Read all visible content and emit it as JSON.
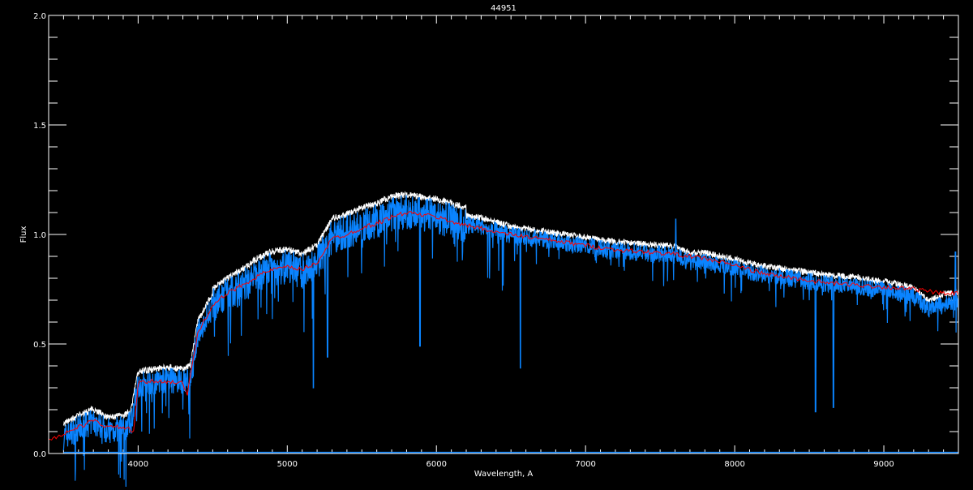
{
  "chart_data": {
    "type": "line",
    "title": "44951",
    "xlabel": "Wavelength, A",
    "ylabel": "Flux",
    "xlim": [
      3400,
      9500
    ],
    "ylim": [
      0.0,
      2.0
    ],
    "x_ticks": [
      4000,
      5000,
      6000,
      7000,
      8000,
      9000
    ],
    "x_tick_labels": [
      "4000",
      "5000",
      "6000",
      "7000",
      "8000",
      "9000"
    ],
    "y_ticks": [
      0.0,
      0.5,
      1.0,
      1.5,
      2.0
    ],
    "y_tick_labels": [
      "0.0",
      "0.5",
      "1.0",
      "1.5",
      "2.0"
    ],
    "grid": false,
    "colors": {
      "background": "#000000",
      "axes": "#ffffff",
      "observed": "#0a84ff",
      "model": "#ff0000",
      "error": "#ffffff"
    },
    "series": [
      {
        "role": "observed",
        "x": [
          3500,
          3600,
          3700,
          3800,
          3900,
          3950,
          4000,
          4100,
          4200,
          4300,
          4350,
          4400,
          4500,
          4600,
          4700,
          4800,
          4900,
          5000,
          5100,
          5200,
          5300,
          5400,
          5500,
          5600,
          5700,
          5800,
          5900,
          6000,
          6100,
          6200,
          6300,
          6400,
          6500,
          6600,
          6700,
          6800,
          6900,
          7000,
          7200,
          7400,
          7600,
          7700,
          7800,
          8000,
          8200,
          8400,
          8600,
          8800,
          9000,
          9200,
          9300,
          9400,
          9500
        ],
        "y": [
          0.08,
          0.12,
          0.15,
          0.11,
          0.12,
          0.14,
          0.32,
          0.33,
          0.34,
          0.33,
          0.35,
          0.55,
          0.68,
          0.73,
          0.77,
          0.82,
          0.85,
          0.86,
          0.84,
          0.88,
          1.0,
          1.02,
          1.05,
          1.07,
          1.1,
          1.11,
          1.1,
          1.09,
          1.07,
          1.05,
          1.04,
          1.02,
          1.0,
          0.99,
          0.98,
          0.97,
          0.96,
          0.95,
          0.93,
          0.92,
          0.91,
          0.88,
          0.88,
          0.85,
          0.82,
          0.8,
          0.78,
          0.77,
          0.75,
          0.72,
          0.66,
          0.69,
          0.7
        ],
        "absorption_lines": [
          {
            "x": 5175,
            "y": 0.3
          },
          {
            "x": 5270,
            "y": 0.44
          },
          {
            "x": 5890,
            "y": 0.49
          },
          {
            "x": 6563,
            "y": 0.39
          },
          {
            "x": 8542,
            "y": 0.19
          },
          {
            "x": 8662,
            "y": 0.21
          },
          {
            "x": 9480,
            "y": 0.3
          }
        ],
        "emission_spikes": [
          {
            "x": 7605,
            "y": 1.07
          },
          {
            "x": 9480,
            "y": 0.92
          }
        ]
      },
      {
        "role": "model",
        "x": [
          3400,
          3500,
          3600,
          3700,
          3800,
          3900,
          3970,
          4000,
          4100,
          4200,
          4300,
          4330,
          4400,
          4500,
          4600,
          4700,
          4800,
          4900,
          5000,
          5100,
          5200,
          5300,
          5400,
          5500,
          5600,
          5700,
          5800,
          5900,
          6000,
          6100,
          6200,
          6300,
          6400,
          6500,
          6600,
          6700,
          6800,
          6900,
          7000,
          7200,
          7400,
          7600,
          7800,
          8000,
          8200,
          8400,
          8600,
          8800,
          9000,
          9200,
          9400,
          9500
        ],
        "y": [
          0.06,
          0.09,
          0.12,
          0.15,
          0.12,
          0.12,
          0.1,
          0.32,
          0.33,
          0.33,
          0.32,
          0.27,
          0.55,
          0.68,
          0.73,
          0.77,
          0.81,
          0.84,
          0.85,
          0.84,
          0.87,
          0.98,
          1.0,
          1.03,
          1.05,
          1.08,
          1.1,
          1.09,
          1.08,
          1.06,
          1.04,
          1.03,
          1.01,
          1.0,
          0.99,
          0.98,
          0.97,
          0.96,
          0.95,
          0.93,
          0.92,
          0.91,
          0.89,
          0.86,
          0.82,
          0.8,
          0.78,
          0.77,
          0.76,
          0.75,
          0.73,
          0.73
        ]
      }
    ]
  }
}
